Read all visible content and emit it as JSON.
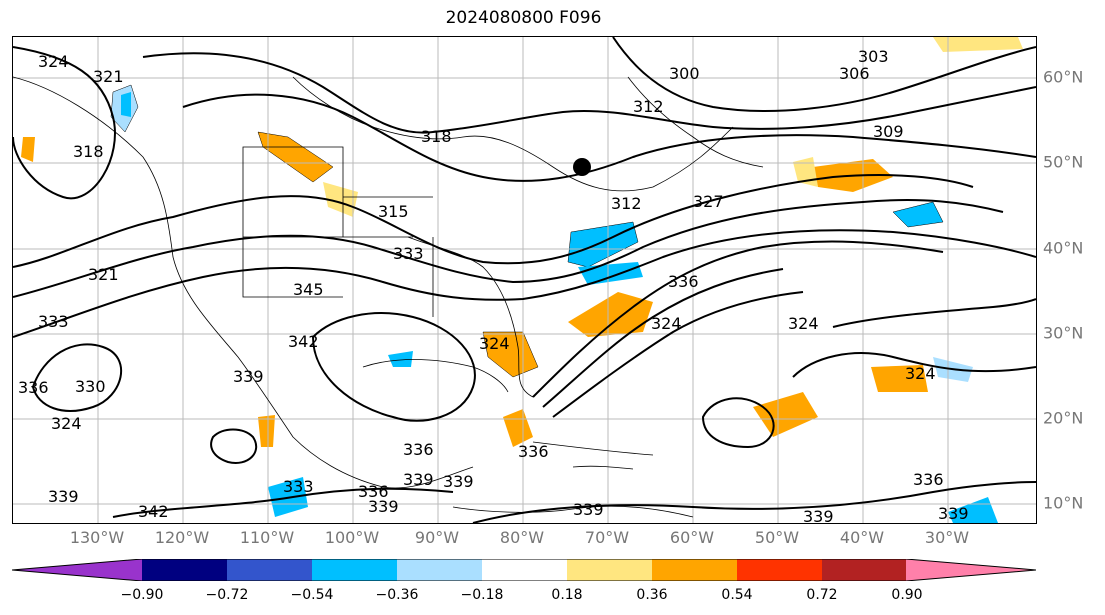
{
  "title": "2024080800 F096",
  "axes": {
    "lon_labels": [
      "130°W",
      "120°W",
      "110°W",
      "100°W",
      "90°W",
      "80°W",
      "70°W",
      "60°W",
      "50°W",
      "40°W",
      "30°W"
    ],
    "lat_labels": [
      "60°N",
      "50°N",
      "40°N",
      "30°N",
      "20°N",
      "10°N"
    ],
    "grid": true
  },
  "contour_labels": [
    "324",
    "321",
    "318",
    "303",
    "306",
    "300",
    "312",
    "309",
    "318",
    "315",
    "312",
    "327",
    "333",
    "336",
    "324",
    "324",
    "321",
    "333",
    "345",
    "342",
    "339",
    "336",
    "330",
    "324",
    "339",
    "342",
    "333",
    "336",
    "339",
    "339",
    "339",
    "336",
    "339",
    "339",
    "336",
    "339",
    "324",
    "324",
    "336"
  ],
  "colorbar": {
    "ticks": [
      "−0.90",
      "−0.72",
      "−0.54",
      "−0.36",
      "−0.18",
      "0.18",
      "0.36",
      "0.54",
      "0.72",
      "0.90"
    ],
    "colors": [
      "#9933cc",
      "#000080",
      "#3355cc",
      "#00bfff",
      "#aadfff",
      "#ffffff",
      "#ffe680",
      "#ffa500",
      "#ff3300",
      "#b22222",
      "#ff80aa"
    ]
  },
  "fill_colors": {
    "light_blue": "#aadfff",
    "blue": "#00bfff",
    "light_yellow": "#ffe680",
    "orange": "#ffa500"
  }
}
